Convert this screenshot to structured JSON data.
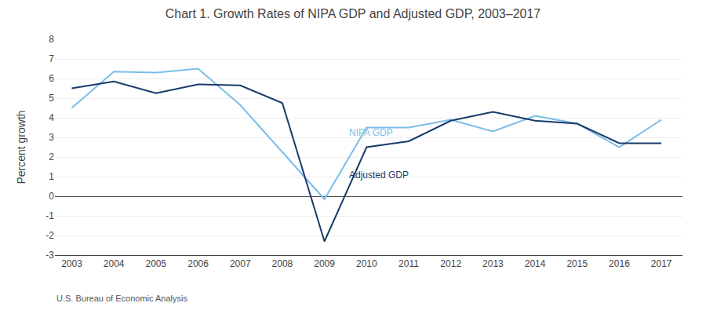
{
  "chart_data": {
    "type": "line",
    "title": "Chart 1. Growth Rates of NIPA GDP and Adjusted GDP, 2003–2017",
    "ylabel": "Percent growth",
    "footnote": "U.S. Bureau of Economic Analysis",
    "x": [
      2003,
      2004,
      2005,
      2006,
      2007,
      2008,
      2009,
      2010,
      2011,
      2012,
      2013,
      2014,
      2015,
      2016,
      2017
    ],
    "series": [
      {
        "color": "#7abde8",
        "values": [
          4.5,
          6.35,
          6.3,
          6.5,
          4.65,
          2.25,
          -0.15,
          3.5,
          3.5,
          3.9,
          3.3,
          4.1,
          3.7,
          2.5,
          3.9
        ]
      },
      {
        "color": "#1a3a6b",
        "values": [
          5.5,
          5.85,
          5.25,
          5.7,
          5.65,
          4.75,
          -2.3,
          2.5,
          2.8,
          3.85,
          4.3,
          3.85,
          3.7,
          2.7,
          2.7
        ]
      }
    ],
    "annotations": [
      {
        "text": "NIPA GDP",
        "x": 2009.55,
        "y": 3.25,
        "color": "#7abde8"
      },
      {
        "text": "Adjusted GDP",
        "x": 2009.55,
        "y": 1.1,
        "color": "#1a3a6b"
      }
    ],
    "xlim": [
      2002.6,
      2017.5
    ],
    "xticks": [
      2003,
      2004,
      2005,
      2006,
      2007,
      2008,
      2009,
      2010,
      2011,
      2012,
      2013,
      2014,
      2015,
      2016,
      2017
    ],
    "ylim": [
      -3,
      8
    ],
    "yticks": [
      -3,
      -2,
      -1,
      0,
      1,
      2,
      3,
      4,
      5,
      6,
      7,
      8
    ],
    "grid": true
  }
}
